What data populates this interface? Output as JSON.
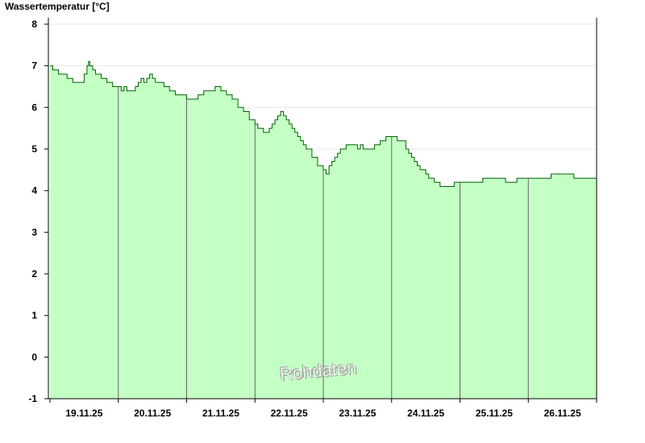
{
  "chart_data": {
    "type": "area",
    "ylabel": "Wassertemperatur [°C]",
    "watermark": "Rohdaten",
    "ylim": [
      -1,
      8
    ],
    "yticks": [
      -1,
      0,
      1,
      2,
      3,
      4,
      5,
      6,
      7,
      8
    ],
    "x_start": "19.11.25 00:00",
    "x_end": "27.11.25 00:00",
    "xtick_labels": [
      "19.11.25",
      "20.11.25",
      "21.11.25",
      "22.11.25",
      "23.11.25",
      "24.11.25",
      "25.11.25",
      "26.11.25"
    ],
    "grid_y": true,
    "fill_color": "#c4ffc4",
    "line_color": "#006400",
    "series": [
      {
        "x_hours": [
          0,
          1,
          2,
          3,
          4,
          6,
          8,
          10,
          12,
          13,
          13.5,
          14,
          15,
          16,
          18,
          20,
          22,
          24,
          25,
          26,
          27,
          28,
          30,
          31,
          32,
          33,
          34,
          35,
          36,
          37,
          38,
          40,
          42,
          44,
          46,
          48,
          50,
          52,
          54,
          56,
          58,
          60,
          62,
          64,
          66,
          68,
          70,
          72,
          73,
          74,
          75,
          76,
          77,
          78,
          79,
          80,
          81,
          82,
          83,
          84,
          85,
          86,
          87,
          88,
          89,
          90,
          92,
          94,
          96,
          97,
          98,
          99,
          100,
          101,
          102,
          103,
          104,
          105,
          106,
          108,
          109,
          110,
          112,
          114,
          116,
          118,
          120,
          121,
          122,
          124,
          125,
          126,
          127,
          128,
          129,
          130,
          132,
          133,
          134,
          135,
          136,
          137,
          138,
          139,
          140,
          141,
          142,
          143,
          144,
          146,
          148,
          150,
          152,
          156,
          160,
          164,
          168,
          172,
          176,
          180,
          184,
          188,
          192
        ],
        "values": [
          7.0,
          6.9,
          6.9,
          6.8,
          6.8,
          6.7,
          6.6,
          6.6,
          6.8,
          7.0,
          7.1,
          7.0,
          6.9,
          6.8,
          6.7,
          6.6,
          6.5,
          6.5,
          6.4,
          6.5,
          6.4,
          6.4,
          6.5,
          6.6,
          6.7,
          6.6,
          6.7,
          6.8,
          6.7,
          6.6,
          6.6,
          6.5,
          6.4,
          6.3,
          6.3,
          6.2,
          6.2,
          6.3,
          6.4,
          6.4,
          6.5,
          6.4,
          6.3,
          6.2,
          6.0,
          5.9,
          5.7,
          5.6,
          5.5,
          5.5,
          5.4,
          5.4,
          5.5,
          5.6,
          5.7,
          5.8,
          5.9,
          5.8,
          5.7,
          5.6,
          5.5,
          5.4,
          5.3,
          5.2,
          5.1,
          5.0,
          4.8,
          4.6,
          4.5,
          4.4,
          4.6,
          4.7,
          4.8,
          4.9,
          5.0,
          5.0,
          5.1,
          5.1,
          5.1,
          5.0,
          5.1,
          5.0,
          5.0,
          5.1,
          5.2,
          5.3,
          5.3,
          5.3,
          5.2,
          5.2,
          5.0,
          4.9,
          4.8,
          4.7,
          4.6,
          4.5,
          4.4,
          4.3,
          4.3,
          4.2,
          4.2,
          4.1,
          4.1,
          4.1,
          4.1,
          4.1,
          4.2,
          4.2,
          4.2,
          4.2,
          4.2,
          4.2,
          4.3,
          4.3,
          4.2,
          4.3,
          4.3,
          4.3,
          4.4,
          4.4,
          4.3,
          4.3,
          4.3
        ]
      }
    ]
  }
}
